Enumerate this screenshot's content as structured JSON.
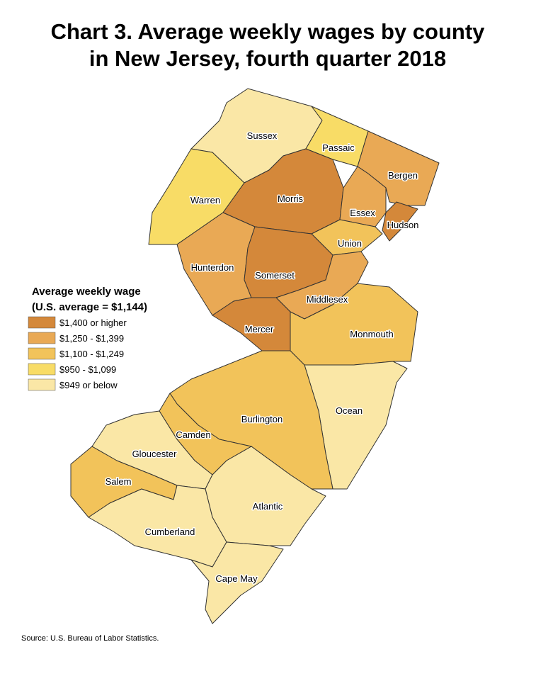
{
  "title": [
    "Chart 3. Average weekly wages by county",
    "in New Jersey, fourth quarter 2018"
  ],
  "legend": {
    "title": [
      "Average weekly wage",
      "(U.S. average = $1,144)"
    ],
    "items": [
      {
        "label": "$1,400 or higher",
        "color": "#d4883a"
      },
      {
        "label": "$1,250 - $1,399",
        "color": "#e9a955"
      },
      {
        "label": "$1,100 - $1,249",
        "color": "#f2c35a"
      },
      {
        "label": "$950 - $1,099",
        "color": "#f8dc66"
      },
      {
        "label": "$949 or below",
        "color": "#fae7a6"
      }
    ]
  },
  "counties": [
    {
      "name": "Sussex",
      "color": "#fae7a6"
    },
    {
      "name": "Passaic",
      "color": "#f8dc66"
    },
    {
      "name": "Bergen",
      "color": "#e9a955"
    },
    {
      "name": "Warren",
      "color": "#f8dc66"
    },
    {
      "name": "Morris",
      "color": "#d4883a"
    },
    {
      "name": "Essex",
      "color": "#e9a955"
    },
    {
      "name": "Hudson",
      "color": "#d4883a"
    },
    {
      "name": "Union",
      "color": "#f2c35a"
    },
    {
      "name": "Hunterdon",
      "color": "#e9a955"
    },
    {
      "name": "Somerset",
      "color": "#d4883a"
    },
    {
      "name": "Middlesex",
      "color": "#e9a955"
    },
    {
      "name": "Mercer",
      "color": "#d4883a"
    },
    {
      "name": "Monmouth",
      "color": "#f2c35a"
    },
    {
      "name": "Ocean",
      "color": "#fae7a6"
    },
    {
      "name": "Burlington",
      "color": "#f2c35a"
    },
    {
      "name": "Camden",
      "color": "#f2c35a"
    },
    {
      "name": "Gloucester",
      "color": "#fae7a6"
    },
    {
      "name": "Salem",
      "color": "#f2c35a"
    },
    {
      "name": "Atlantic",
      "color": "#fae7a6"
    },
    {
      "name": "Cumberland",
      "color": "#fae7a6"
    },
    {
      "name": "Cape May",
      "color": "#fae7a6"
    }
  ],
  "source": "Source: U.S. Bureau of Labor Statistics."
}
